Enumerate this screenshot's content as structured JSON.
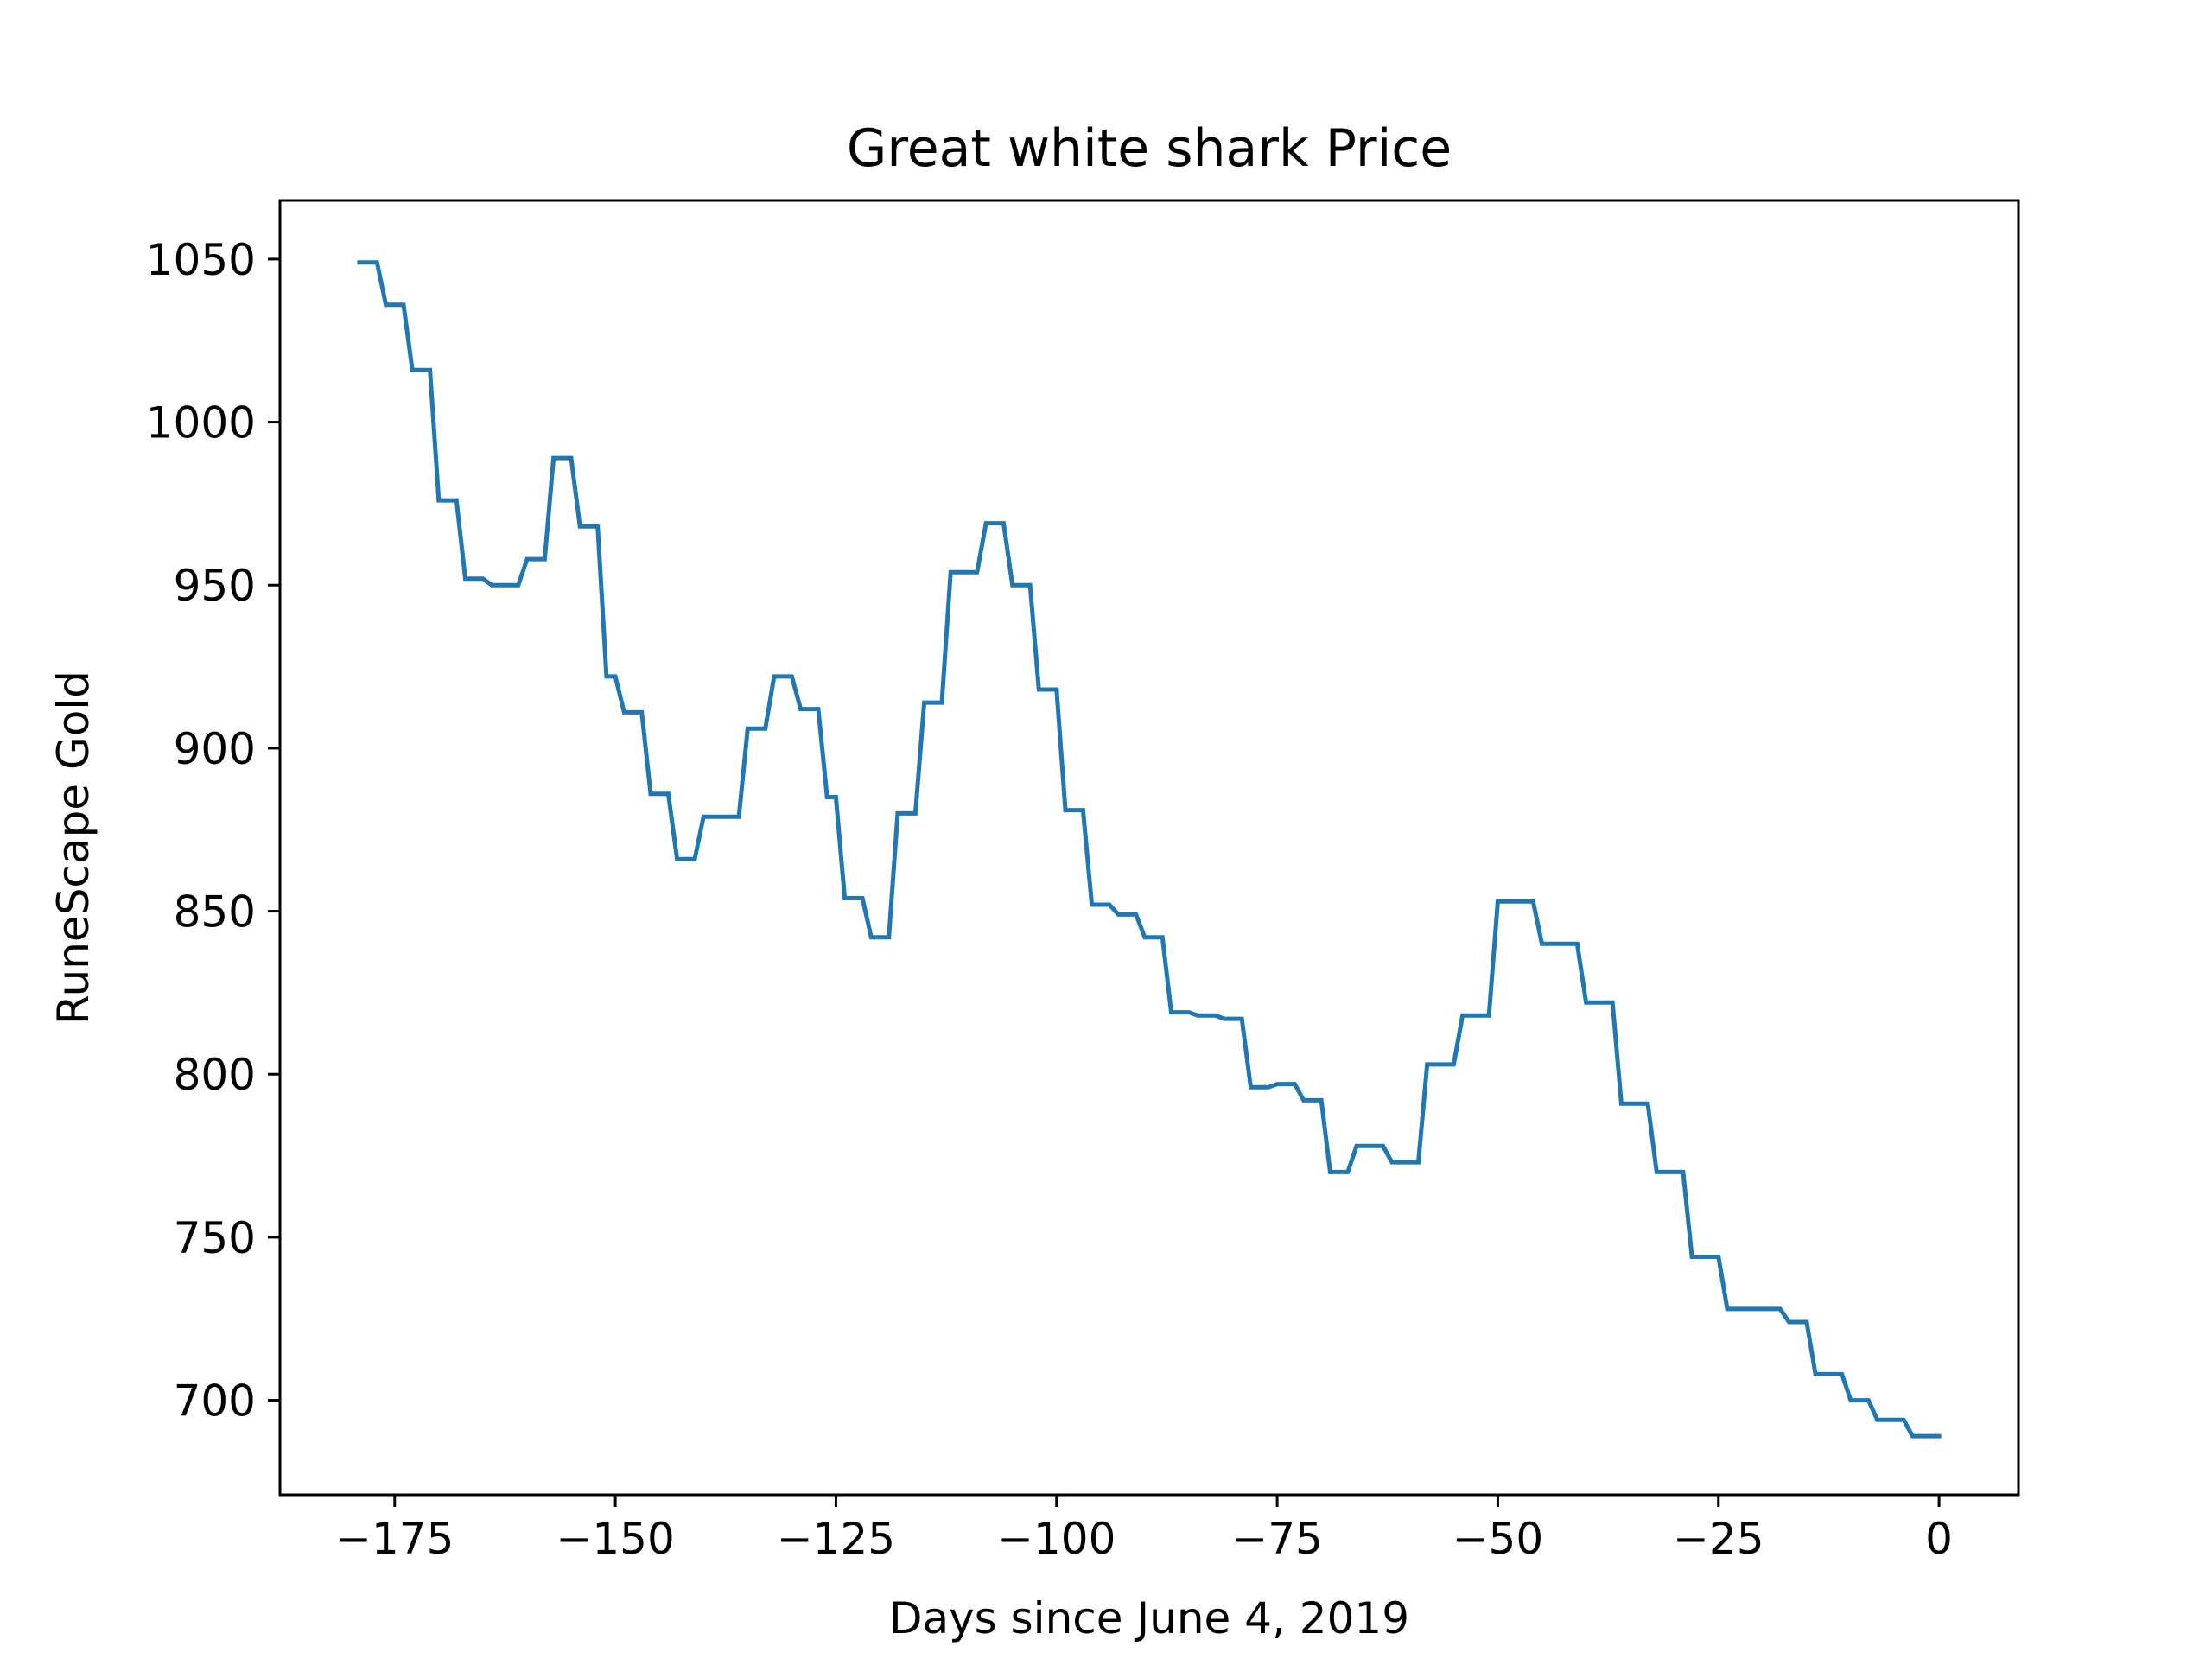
{
  "chart_data": {
    "type": "line",
    "title": "Great white shark Price",
    "xlabel": "Days since June 4, 2019",
    "ylabel": "RuneScape Gold",
    "xlim": [
      -188,
      9
    ],
    "ylim": [
      671,
      1068
    ],
    "xticks": [
      -175,
      -150,
      -125,
      -100,
      -75,
      -50,
      -25,
      0
    ],
    "xtick_labels": [
      "−175",
      "−150",
      "−125",
      "−100",
      "−75",
      "−50",
      "−25",
      "0"
    ],
    "yticks": [
      700,
      750,
      800,
      850,
      900,
      950,
      1000,
      1050
    ],
    "ytick_labels": [
      "700",
      "750",
      "800",
      "850",
      "900",
      "950",
      "1000",
      "1050"
    ],
    "grid": false,
    "legend": false,
    "line_color": "#1f77b4",
    "series": [
      {
        "x": [
          -179,
          -178,
          -177,
          -176,
          -175,
          -174,
          -173,
          -172,
          -171,
          -170,
          -169,
          -168,
          -167,
          -166,
          -165,
          -164,
          -163,
          -162,
          -161,
          -160,
          -159,
          -158,
          -157,
          -156,
          -155,
          -154,
          -153,
          -152,
          -151,
          -150,
          -149,
          -148,
          -147,
          -146,
          -145,
          -144,
          -143,
          -142,
          -141,
          -140,
          -139,
          -138,
          -137,
          -136,
          -135,
          -134,
          -133,
          -132,
          -131,
          -130,
          -129,
          -128,
          -127,
          -126,
          -125,
          -124,
          -123,
          -122,
          -121,
          -120,
          -119,
          -118,
          -117,
          -116,
          -115,
          -114,
          -113,
          -112,
          -111,
          -110,
          -109,
          -108,
          -107,
          -106,
          -105,
          -104,
          -103,
          -102,
          -101,
          -100,
          -99,
          -98,
          -97,
          -96,
          -95,
          -94,
          -93,
          -92,
          -91,
          -90,
          -89,
          -88,
          -87,
          -86,
          -85,
          -84,
          -83,
          -82,
          -81,
          -80,
          -79,
          -78,
          -77,
          -76,
          -75,
          -74,
          -73,
          -72,
          -71,
          -70,
          -69,
          -68,
          -67,
          -66,
          -65,
          -64,
          -63,
          -62,
          -61,
          -60,
          -59,
          -58,
          -57,
          -56,
          -55,
          -54,
          -53,
          -52,
          -51,
          -50,
          -49,
          -48,
          -47,
          -46,
          -45,
          -44,
          -43,
          -42,
          -41,
          -40,
          -39,
          -38,
          -37,
          -36,
          -35,
          -34,
          -33,
          -32,
          -31,
          -30,
          -29,
          -28,
          -27,
          -26,
          -25,
          -24,
          -23,
          -22,
          -21,
          -20,
          -19,
          -18,
          -17,
          -16,
          -15,
          -14,
          -13,
          -12,
          -11,
          -10,
          -9,
          -8,
          -7,
          -6,
          -5,
          -4,
          -3,
          -2,
          -1,
          0
        ],
        "y": [
          1049,
          1049,
          1049,
          1036,
          1036,
          1036,
          1016,
          1016,
          1016,
          976,
          976,
          976,
          952,
          952,
          952,
          950,
          950,
          950,
          950,
          958,
          958,
          958,
          989,
          989,
          989,
          968,
          968,
          968,
          922,
          922,
          911,
          911,
          911,
          886,
          886,
          886,
          866,
          866,
          866,
          879,
          879,
          879,
          879,
          879,
          906,
          906,
          906,
          922,
          922,
          922,
          912,
          912,
          912,
          885,
          885,
          854,
          854,
          854,
          842,
          842,
          842,
          880,
          880,
          880,
          914,
          914,
          914,
          954,
          954,
          954,
          954,
          969,
          969,
          969,
          950,
          950,
          950,
          918,
          918,
          918,
          881,
          881,
          881,
          852,
          852,
          852,
          849,
          849,
          849,
          842,
          842,
          842,
          819,
          819,
          819,
          818,
          818,
          818,
          817,
          817,
          817,
          796,
          796,
          796,
          797,
          797,
          797,
          792,
          792,
          792,
          770,
          770,
          770,
          778,
          778,
          778,
          778,
          773,
          773,
          773,
          773,
          803,
          803,
          803,
          803,
          818,
          818,
          818,
          818,
          853,
          853,
          853,
          853,
          853,
          840,
          840,
          840,
          840,
          840,
          822,
          822,
          822,
          822,
          791,
          791,
          791,
          791,
          770,
          770,
          770,
          770,
          744,
          744,
          744,
          744,
          728,
          728,
          728,
          728,
          728,
          728,
          728,
          724,
          724,
          724,
          708,
          708,
          708,
          708,
          700,
          700,
          700,
          694,
          694,
          694,
          694,
          689,
          689,
          689,
          689
        ]
      }
    ]
  }
}
